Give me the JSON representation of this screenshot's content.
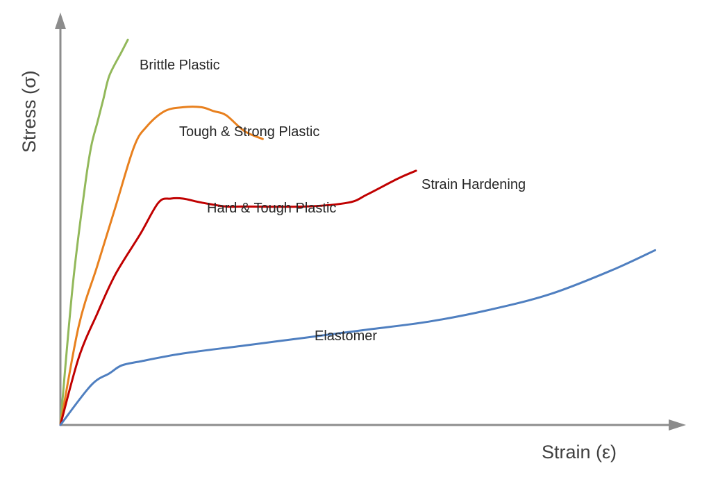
{
  "chart_data": {
    "type": "line",
    "title": "",
    "xlabel": "Strain (ε)",
    "ylabel": "Stress (σ)",
    "xlim": [
      0,
      100
    ],
    "ylim": [
      0,
      100
    ],
    "grid": false,
    "legend": "none",
    "series": [
      {
        "name": "Brittle Plastic",
        "color": "#92b85a",
        "x": [
          0,
          2,
          4,
          5,
          6,
          7,
          8,
          10,
          11
        ],
        "y": [
          0,
          35,
          60,
          70,
          76,
          82,
          88,
          94,
          97
        ]
      },
      {
        "name": "Tough & Strong Plastic",
        "color": "#e8801e",
        "x": [
          0,
          3,
          6,
          9,
          12,
          14,
          17,
          20,
          23,
          25,
          27,
          30,
          33
        ],
        "y": [
          0,
          25,
          40,
          55,
          70,
          75,
          79,
          80,
          80,
          79,
          78,
          74,
          72
        ]
      },
      {
        "name": "Hard & Tough Plastic",
        "color": "#c00000",
        "x": [
          0,
          3,
          6,
          9,
          13,
          16,
          18,
          20,
          23,
          27,
          30,
          40,
          47,
          50,
          55,
          58
        ],
        "y": [
          0,
          17,
          28,
          38,
          48,
          56,
          57,
          57,
          56,
          55,
          55,
          55,
          56,
          58,
          62,
          64
        ]
      },
      {
        "name": "Elastomer",
        "color": "#4f7fc0",
        "x": [
          0,
          5,
          8,
          10,
          13,
          20,
          30,
          40,
          50,
          60,
          70,
          80,
          90,
          97
        ],
        "y": [
          0,
          10,
          13,
          15,
          16,
          18,
          20,
          22,
          24,
          26,
          29,
          33,
          39,
          44
        ]
      }
    ],
    "annotations": [
      {
        "text": "Brittle Plastic"
      },
      {
        "text": "Tough & Strong Plastic"
      },
      {
        "text": "Hard & Tough Plastic"
      },
      {
        "text": "Strain Hardening"
      },
      {
        "text": "Elastomer"
      }
    ]
  }
}
